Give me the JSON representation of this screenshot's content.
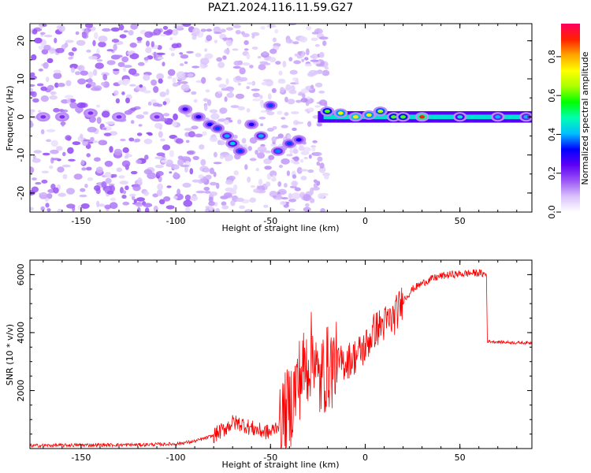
{
  "figure": {
    "title": "PAZ1.2024.116.11.59.G27"
  },
  "chart_data": [
    {
      "type": "heatmap",
      "title": "PAZ1.2024.116.11.59.G27",
      "xlabel": "Height of straight line (km)",
      "ylabel": "Frequency (Hz)",
      "xlim": [
        -177,
        88
      ],
      "ylim": [
        -25,
        24.5
      ],
      "xticks": [
        -150,
        -100,
        -50,
        0,
        50
      ],
      "yticks": [
        -20,
        -10,
        0,
        10,
        20
      ],
      "colorbar": {
        "label": "Normalized spectral amplitude",
        "range": [
          0,
          0.97
        ],
        "ticks": [
          0.0,
          0.2,
          0.4,
          0.6,
          0.8
        ],
        "colormap": [
          "#ffffff",
          "#d9c2fb",
          "#9a55f5",
          "#5d00f5",
          "#0000ff",
          "#00bfff",
          "#00ffb0",
          "#00ff00",
          "#aaff00",
          "#ffff00",
          "#ffa500",
          "#ff2000",
          "#ff0060"
        ]
      },
      "features": [
        {
          "x": -170,
          "y": 0,
          "amplitude": 0.2
        },
        {
          "x": -160,
          "y": 0,
          "amplitude": 0.2
        },
        {
          "x": -145,
          "y": 1,
          "amplitude": 0.2
        },
        {
          "x": -130,
          "y": 0,
          "amplitude": 0.2
        },
        {
          "x": -110,
          "y": 0,
          "amplitude": 0.2
        },
        {
          "x": -95,
          "y": 2,
          "amplitude": 0.28
        },
        {
          "x": -88,
          "y": 0,
          "amplitude": 0.3
        },
        {
          "x": -82,
          "y": -2,
          "amplitude": 0.32
        },
        {
          "x": -78,
          "y": -3,
          "amplitude": 0.35
        },
        {
          "x": -73,
          "y": -5,
          "amplitude": 0.4
        },
        {
          "x": -70,
          "y": -7,
          "amplitude": 0.42
        },
        {
          "x": -66,
          "y": -9,
          "amplitude": 0.35
        },
        {
          "x": -60,
          "y": -2,
          "amplitude": 0.3
        },
        {
          "x": -55,
          "y": -5,
          "amplitude": 0.4
        },
        {
          "x": -50,
          "y": 3,
          "amplitude": 0.35
        },
        {
          "x": -46,
          "y": -9,
          "amplitude": 0.38
        },
        {
          "x": -40,
          "y": -7,
          "amplitude": 0.35
        },
        {
          "x": -35,
          "y": -6,
          "amplitude": 0.3
        },
        {
          "x": -20,
          "y": 1.5,
          "amplitude": 0.6
        },
        {
          "x": -13,
          "y": 1,
          "amplitude": 0.7
        },
        {
          "x": -5,
          "y": 0,
          "amplitude": 0.75
        },
        {
          "x": 2,
          "y": 0.5,
          "amplitude": 0.7
        },
        {
          "x": 8,
          "y": 1.5,
          "amplitude": 0.65
        },
        {
          "x": 15,
          "y": 0,
          "amplitude": 0.6
        },
        {
          "x": 20,
          "y": 0,
          "amplitude": 0.6
        },
        {
          "x": 30,
          "y": 0,
          "amplitude": 0.9
        },
        {
          "x": 50,
          "y": 0,
          "amplitude": 0.45
        },
        {
          "x": 70,
          "y": 0,
          "amplitude": 0.4
        },
        {
          "x": 85,
          "y": 0,
          "amplitude": 0.4
        }
      ],
      "grid": false
    },
    {
      "type": "line",
      "xlabel": "Height of straight line (km)",
      "ylabel": "SNR (10 * v/v)",
      "xlim": [
        -177,
        88
      ],
      "ylim": [
        0,
        6500
      ],
      "xticks": [
        -150,
        -100,
        -50,
        0,
        50
      ],
      "yticks": [
        2000,
        4000,
        6000
      ],
      "color": "#ff0000",
      "x": [
        -177,
        -150,
        -120,
        -100,
        -90,
        -80,
        -75,
        -70,
        -65,
        -60,
        -55,
        -50,
        -45,
        -40,
        -35,
        -30,
        -27,
        -25,
        -20,
        -15,
        -10,
        -5,
        0,
        5,
        10,
        15,
        20,
        25,
        30,
        35,
        40,
        45,
        50,
        55,
        60,
        64,
        64.5,
        70,
        80,
        88
      ],
      "y": [
        100,
        120,
        130,
        160,
        250,
        450,
        650,
        900,
        850,
        700,
        600,
        550,
        900,
        1400,
        2400,
        3000,
        3500,
        2200,
        2800,
        2900,
        3000,
        3200,
        3500,
        4100,
        4300,
        4500,
        5100,
        5500,
        5700,
        5850,
        5950,
        6000,
        6020,
        6050,
        6060,
        6000,
        3700,
        3680,
        3650,
        3650
      ],
      "grid": false
    }
  ]
}
